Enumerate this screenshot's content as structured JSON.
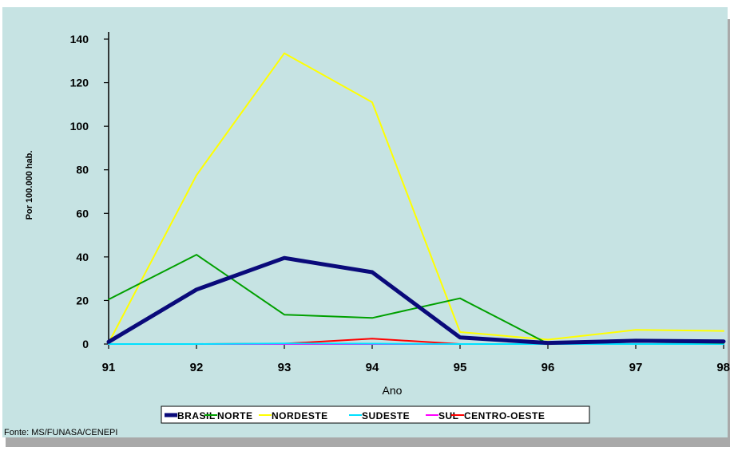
{
  "chart_data": {
    "type": "line",
    "title": "",
    "xlabel": "Ano",
    "ylabel": "Por 100.000 hab.",
    "categories": [
      "91",
      "92",
      "93",
      "94",
      "95",
      "96",
      "97",
      "98"
    ],
    "y_ticks": [
      "0",
      "20",
      "40",
      "60",
      "80",
      "100",
      "120",
      "140"
    ],
    "ylim": [
      0,
      140
    ],
    "grid": false,
    "legend_position": "bottom",
    "series": [
      {
        "name": "BRASIL",
        "color": "#0a0a7a",
        "values": [
          1,
          25,
          39.5,
          33,
          3,
          0.5,
          1.5,
          1.2
        ]
      },
      {
        "name": "NORTE",
        "color": "#00a000",
        "values": [
          20.5,
          41,
          13.5,
          12,
          21,
          0.2,
          1,
          0.5
        ]
      },
      {
        "name": "NORDESTE",
        "color": "#ffff00",
        "values": [
          0.5,
          77.5,
          133.5,
          111,
          5.5,
          2,
          6.5,
          6
        ]
      },
      {
        "name": "SUDESTE",
        "color": "#00e0ff",
        "values": [
          0,
          0,
          0.3,
          0.2,
          0,
          0,
          0,
          0
        ]
      },
      {
        "name": "SUL",
        "color": "#ff00ff",
        "values": [
          0,
          0,
          0,
          0,
          0,
          0,
          0,
          0
        ]
      },
      {
        "name": "CENTRO-OESTE",
        "color": "#ff0000",
        "values": [
          0,
          0,
          0.2,
          2.5,
          0,
          0,
          0,
          0
        ]
      }
    ],
    "source": "Fonte: MS/FUNASA/CENEPI"
  },
  "colors": {
    "panel_background": "#c6e3e3",
    "axis": "#000000"
  }
}
